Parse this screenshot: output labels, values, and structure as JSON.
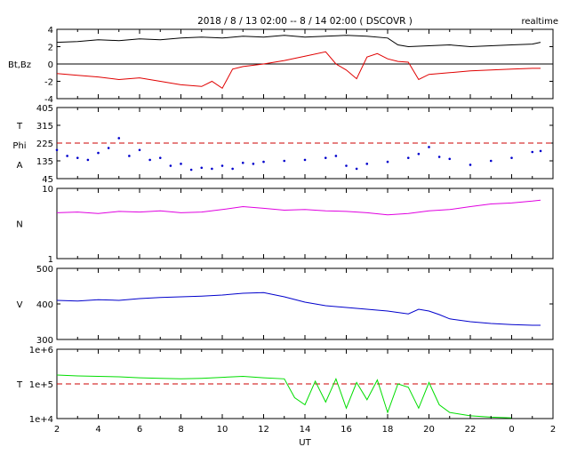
{
  "title": "2018 / 8 / 13  02:00 -- 8 / 14  02:00 ( DSCOVR )",
  "badge": "realtime",
  "xlabel": "UT",
  "x_ticks": [
    "2",
    "4",
    "6",
    "8",
    "10",
    "12",
    "14",
    "16",
    "18",
    "20",
    "22",
    "0",
    "2"
  ],
  "colors": {
    "bt": "#000000",
    "bz": "#e00000",
    "phi": "#0000cc",
    "n": "#e000e0",
    "v": "#0000cc",
    "t": "#00dd00",
    "ref": "#cc0000"
  },
  "chart_data": [
    {
      "type": "line",
      "panel": "Bt,Bz",
      "ylabel": "Bt,Bz",
      "ylim": [
        -4,
        4
      ],
      "y_ticks": [
        "4",
        "2",
        "0",
        "-2",
        "-4"
      ],
      "series": [
        {
          "key": "bt",
          "x": [
            2,
            3,
            4,
            5,
            6,
            7,
            8,
            9,
            10,
            11,
            12,
            13,
            14,
            15,
            16,
            17,
            18,
            18.5,
            19,
            20,
            21,
            22,
            23,
            24,
            25,
            25.4
          ],
          "y": [
            2.5,
            2.6,
            2.8,
            2.7,
            2.9,
            2.8,
            3.0,
            3.1,
            3.0,
            3.2,
            3.1,
            3.3,
            3.1,
            3.2,
            3.3,
            3.2,
            3.0,
            2.2,
            2.0,
            2.1,
            2.2,
            2.0,
            2.1,
            2.2,
            2.3,
            2.5
          ]
        },
        {
          "key": "bz",
          "x": [
            2,
            3,
            4,
            5,
            6,
            7,
            8,
            9,
            9.5,
            10,
            10.5,
            11,
            12,
            13,
            14,
            15,
            15.5,
            16,
            16.5,
            17,
            17.5,
            18,
            18.5,
            19,
            19.5,
            20,
            21,
            22,
            23,
            24,
            25,
            25.4
          ],
          "y": [
            -1.1,
            -1.3,
            -1.5,
            -1.8,
            -1.6,
            -2.0,
            -2.4,
            -2.6,
            -2.0,
            -2.8,
            -0.6,
            -0.3,
            0.0,
            0.4,
            0.9,
            1.4,
            0.0,
            -0.7,
            -1.7,
            0.8,
            1.2,
            0.6,
            0.3,
            0.2,
            -1.8,
            -1.2,
            -1.0,
            -0.8,
            -0.7,
            -0.6,
            -0.5,
            -0.5
          ]
        }
      ]
    },
    {
      "type": "scatter",
      "panel": "TPhiA",
      "ylabel_lines": [
        "T",
        "Phi",
        "A"
      ],
      "ylim": [
        45,
        405
      ],
      "y_ticks": [
        "405",
        "315",
        "225",
        "135",
        "45"
      ],
      "reference": 225,
      "series": [
        {
          "key": "phi",
          "x": [
            2,
            2.5,
            3,
            3.5,
            4,
            4.5,
            5,
            5.5,
            6,
            6.5,
            7,
            7.5,
            8,
            8.5,
            9,
            9.5,
            10,
            10.5,
            11,
            11.5,
            12,
            13,
            14,
            15,
            15.5,
            16,
            16.5,
            17,
            18,
            19,
            19.5,
            20,
            20.5,
            21,
            22,
            23,
            24,
            25,
            25.4
          ],
          "y": [
            190,
            160,
            150,
            140,
            175,
            200,
            250,
            160,
            190,
            140,
            150,
            110,
            120,
            90,
            100,
            95,
            110,
            95,
            125,
            120,
            130,
            135,
            140,
            150,
            160,
            110,
            95,
            120,
            130,
            150,
            170,
            205,
            155,
            145,
            115,
            135,
            150,
            180,
            185
          ]
        }
      ]
    },
    {
      "type": "line",
      "panel": "N",
      "scale": "log",
      "ylabel": "N",
      "ylim": [
        1,
        10
      ],
      "y_ticks": [
        "10",
        "1"
      ],
      "series": [
        {
          "key": "n",
          "x": [
            2,
            3,
            4,
            5,
            6,
            7,
            8,
            9,
            10,
            11,
            12,
            13,
            14,
            15,
            16,
            17,
            18,
            19,
            20,
            21,
            22,
            23,
            24,
            25,
            25.4
          ],
          "y": [
            4.5,
            4.6,
            4.4,
            4.7,
            4.6,
            4.8,
            4.5,
            4.6,
            5.0,
            5.5,
            5.2,
            4.9,
            5.0,
            4.8,
            4.7,
            4.5,
            4.2,
            4.4,
            4.8,
            5.0,
            5.5,
            6.0,
            6.2,
            6.6,
            6.8
          ]
        }
      ]
    },
    {
      "type": "line",
      "panel": "V",
      "ylabel": "V",
      "ylim": [
        300,
        500
      ],
      "y_ticks": [
        "500",
        "400",
        "300"
      ],
      "series": [
        {
          "key": "v",
          "x": [
            2,
            3,
            4,
            5,
            6,
            7,
            8,
            9,
            10,
            11,
            12,
            13,
            14,
            15,
            16,
            17,
            18,
            19,
            19.5,
            20,
            20.5,
            21,
            22,
            23,
            24,
            25,
            25.4
          ],
          "y": [
            410,
            408,
            412,
            410,
            415,
            418,
            420,
            422,
            425,
            430,
            432,
            420,
            405,
            395,
            390,
            385,
            380,
            372,
            385,
            380,
            370,
            358,
            350,
            345,
            342,
            340,
            340
          ]
        }
      ]
    },
    {
      "type": "line",
      "panel": "T",
      "scale": "log",
      "ylabel": "T",
      "ylim": [
        10000,
        1000000
      ],
      "y_ticks": [
        "1e+6",
        "1e+5",
        "1e+4"
      ],
      "reference": 100000,
      "series": [
        {
          "key": "t",
          "x": [
            2,
            3,
            4,
            5,
            6,
            7,
            8,
            9,
            10,
            11,
            12,
            13,
            13.5,
            14,
            14.5,
            15,
            15.5,
            16,
            16.5,
            17,
            17.5,
            18,
            18.5,
            19,
            19.5,
            20,
            20.5,
            21,
            22,
            23,
            24
          ],
          "y": [
            180000,
            170000,
            165000,
            160000,
            150000,
            145000,
            140000,
            145000,
            155000,
            165000,
            150000,
            140000,
            40000,
            25000,
            120000,
            30000,
            140000,
            20000,
            110000,
            35000,
            130000,
            15000,
            100000,
            80000,
            20000,
            110000,
            25000,
            15000,
            12000,
            11000,
            10500
          ]
        }
      ]
    }
  ]
}
